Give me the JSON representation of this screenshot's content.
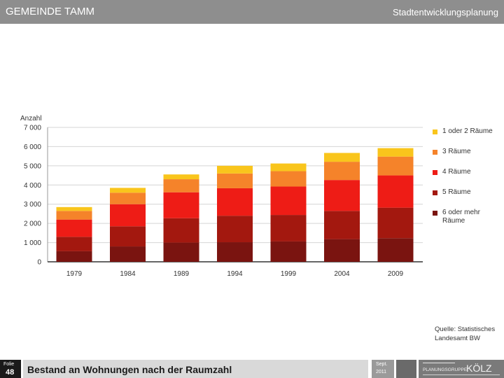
{
  "header": {
    "left_title": "GEMEINDE TAMM",
    "right_title": "Stadtentwicklungsplanung"
  },
  "chart_data": {
    "type": "bar",
    "stacked": true,
    "ylabel": "Anzahl",
    "ylim": [
      0,
      7000
    ],
    "yticks": [
      0,
      1000,
      2000,
      3000,
      4000,
      5000,
      6000,
      7000
    ],
    "ytick_labels": [
      "0",
      "1 000",
      "2 000",
      "3 000",
      "4 000",
      "5 000",
      "6 000",
      "7 000"
    ],
    "categories": [
      "1979",
      "1984",
      "1989",
      "1994",
      "1999",
      "2004",
      "2009"
    ],
    "grid": true,
    "legend_position": "right",
    "series": [
      {
        "name": "6 oder mehr Räume",
        "color": "#7a1410",
        "values": [
          550,
          800,
          1000,
          1020,
          1060,
          1180,
          1230
        ]
      },
      {
        "name": "5 Räume",
        "color": "#a3180f",
        "values": [
          750,
          1050,
          1270,
          1380,
          1380,
          1470,
          1590
        ]
      },
      {
        "name": "4 Räume",
        "color": "#ee1c16",
        "values": [
          900,
          1150,
          1350,
          1430,
          1480,
          1610,
          1680
        ]
      },
      {
        "name": "3 Räume",
        "color": "#f5832a",
        "values": [
          450,
          600,
          680,
          770,
          800,
          950,
          980
        ]
      },
      {
        "name": "1 oder 2 Räume",
        "color": "#f9c51c",
        "values": [
          200,
          250,
          250,
          400,
          400,
          460,
          440
        ]
      }
    ]
  },
  "legend": {
    "items": [
      {
        "label": "1 oder 2 Räume",
        "color": "#f9c51c"
      },
      {
        "label": "3 Räume",
        "color": "#f5832a"
      },
      {
        "label": "4 Räume",
        "color": "#ee1c16"
      },
      {
        "label": "5 Räume",
        "color": "#a3180f"
      },
      {
        "label": "6 oder mehr Räume",
        "color": "#7a1410"
      }
    ]
  },
  "source": "Quelle: Statistisches Landesamt BW",
  "footer": {
    "folie_label": "Folie",
    "folie_number": "48",
    "slide_title": "Bestand an Wohnungen nach der Raumzahl",
    "date_month": "Sept.",
    "date_year": "2011",
    "logo_name": "planungsgruppe-kolz-logo",
    "logo_text": "KÖLZ",
    "logo_subtext": "PLANUNGSGRUPPE"
  }
}
